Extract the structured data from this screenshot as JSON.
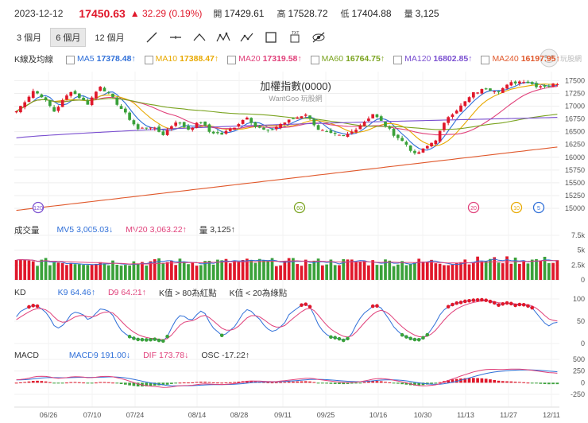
{
  "header": {
    "date": "2023-12-12",
    "price": "17450.63",
    "change": "▲ 32.29 (0.19%)",
    "open_label": "開",
    "open": "17429.61",
    "high_label": "高",
    "high": "17528.72",
    "low_label": "低",
    "low": "17404.88",
    "volume_label": "量",
    "volume": "3,125"
  },
  "toolbar": {
    "periods": [
      "3 個月",
      "6 個月",
      "12 個月"
    ],
    "active_period": "6 個月",
    "tools": [
      "line-tool-icon",
      "horizontal-line-icon",
      "trend-angle-icon",
      "pattern-icon",
      "fibonacci-icon",
      "rectangle-icon",
      "text-tool-icon",
      "hide-icon"
    ]
  },
  "ma_legend": {
    "title": "K線及均線",
    "items": [
      {
        "name": "MA5",
        "value": "17378.48↑",
        "color": "#2f6fd8"
      },
      {
        "name": "MA10",
        "value": "17388.47↑",
        "color": "#e8a900"
      },
      {
        "name": "MA20",
        "value": "17319.58↑",
        "color": "#e0407a"
      },
      {
        "name": "MA60",
        "value": "16764.75↑",
        "color": "#7aa31f"
      },
      {
        "name": "MA120",
        "value": "16802.85↑",
        "color": "#7a4fd0"
      },
      {
        "name": "MA240",
        "value": "16197.95↑",
        "color": "#e0582b"
      }
    ]
  },
  "price_chart": {
    "title": "加權指數(0000)",
    "watermark": "WantGoo 玩股網",
    "y_ticks": [
      "17500",
      "17250",
      "17000",
      "16750",
      "16500",
      "16250",
      "16000",
      "15750",
      "15500",
      "15250",
      "15000"
    ],
    "markers": [
      {
        "label": "120",
        "color": "#7a4fd0"
      },
      {
        "label": "60",
        "color": "#7aa31f"
      },
      {
        "label": "20",
        "color": "#e0407a"
      },
      {
        "label": "10",
        "color": "#e8a900"
      },
      {
        "label": "5",
        "color": "#2f6fd8"
      }
    ]
  },
  "volume_legend": {
    "title": "成交量",
    "items": [
      {
        "name": "MV5",
        "value": "3,005.03↓",
        "color": "#2f6fd8"
      },
      {
        "name": "MV20",
        "value": "3,063.22↑",
        "color": "#e0407a"
      },
      {
        "name": "量",
        "value": "3,125↑",
        "color": "#333333"
      }
    ],
    "y_ticks": [
      "7.5k",
      "5k",
      "2.5k",
      "0"
    ]
  },
  "kd_legend": {
    "title": "KD",
    "items": [
      {
        "name": "K9",
        "value": "64.46↑",
        "color": "#2f6fd8"
      },
      {
        "name": "D9",
        "value": "64.21↑",
        "color": "#e0407a"
      }
    ],
    "note1": "K值 > 80為紅點",
    "note2": "K值 < 20為綠點",
    "y_ticks": [
      "100",
      "50",
      "0"
    ]
  },
  "macd_legend": {
    "title": "MACD",
    "items": [
      {
        "name": "MACD9",
        "value": "191.00↓",
        "color": "#2f6fd8"
      },
      {
        "name": "DIF",
        "value": "173.78↓",
        "color": "#e0407a"
      },
      {
        "name": "OSC",
        "value": "-17.22↑",
        "color": "#333333"
      }
    ],
    "y_ticks": [
      "500",
      "250",
      "0",
      "-250"
    ]
  },
  "x_axis": {
    "dates": [
      "06/26",
      "07/10",
      "07/24",
      "08/14",
      "08/28",
      "09/11",
      "09/25",
      "10/16",
      "10/30",
      "11/13",
      "11/27",
      "12/11"
    ]
  },
  "chart_data": {
    "type": "candlestick",
    "title": "加權指數(0000)",
    "x": [
      "06/26",
      "07/10",
      "07/24",
      "08/14",
      "08/28",
      "09/11",
      "09/25",
      "10/16",
      "10/30",
      "11/13",
      "11/27",
      "12/11"
    ],
    "close_approx": [
      17250,
      16950,
      17150,
      16650,
      16600,
      16750,
      16450,
      16700,
      16050,
      17000,
      17350,
      17450
    ],
    "ylim": [
      15000,
      17600
    ],
    "series": [
      {
        "name": "MA5",
        "last": 17378.48
      },
      {
        "name": "MA10",
        "last": 17388.47
      },
      {
        "name": "MA20",
        "last": 17319.58
      },
      {
        "name": "MA60",
        "last": 16764.75
      },
      {
        "name": "MA120",
        "last": 16802.85
      },
      {
        "name": "MA240",
        "last": 16197.95
      }
    ],
    "volume_ylim": [
      0,
      7500
    ],
    "kd_ylim": [
      0,
      100
    ],
    "macd_ylim": [
      -250,
      500
    ],
    "close_anchors": [
      [
        0,
        16900
      ],
      [
        4,
        17300
      ],
      [
        6,
        17200
      ],
      [
        9,
        16900
      ],
      [
        13,
        17300
      ],
      [
        17,
        17050
      ],
      [
        20,
        17400
      ],
      [
        23,
        17150
      ],
      [
        26,
        16850
      ],
      [
        29,
        16550
      ],
      [
        32,
        16600
      ],
      [
        35,
        16450
      ],
      [
        38,
        16700
      ],
      [
        41,
        16550
      ],
      [
        44,
        16700
      ],
      [
        46,
        16500
      ],
      [
        49,
        16450
      ],
      [
        52,
        16600
      ],
      [
        55,
        16800
      ],
      [
        57,
        16600
      ],
      [
        60,
        16500
      ],
      [
        63,
        16650
      ],
      [
        66,
        16750
      ],
      [
        69,
        16850
      ],
      [
        72,
        16550
      ],
      [
        75,
        16450
      ],
      [
        78,
        16400
      ],
      [
        80,
        16500
      ],
      [
        83,
        16700
      ],
      [
        85,
        16850
      ],
      [
        87,
        16700
      ],
      [
        90,
        16450
      ],
      [
        93,
        16250
      ],
      [
        95,
        16050
      ],
      [
        97,
        16150
      ],
      [
        100,
        16350
      ],
      [
        103,
        16800
      ],
      [
        106,
        17000
      ],
      [
        109,
        17250
      ],
      [
        112,
        17350
      ],
      [
        115,
        17300
      ],
      [
        118,
        17450
      ],
      [
        121,
        17500
      ],
      [
        124,
        17400
      ],
      [
        127,
        17400
      ],
      [
        129,
        17450
      ]
    ]
  }
}
